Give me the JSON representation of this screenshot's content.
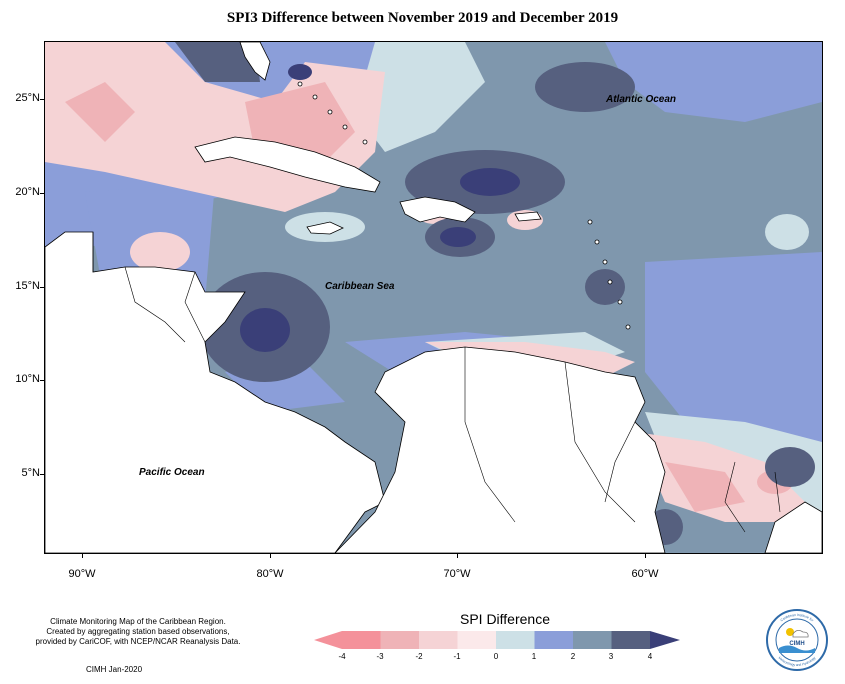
{
  "title": "SPI3 Difference between November 2019 and December 2019",
  "map": {
    "latitude_ticks": [
      "25°N",
      "20°N",
      "15°N",
      "10°N",
      "5°N"
    ],
    "longitude_ticks": [
      "90°W",
      "80°W",
      "70°W",
      "60°W"
    ],
    "ocean_labels": {
      "atlantic": "Atlantic Ocean",
      "caribbean": "Caribbean Sea",
      "pacific": "Pacific Ocean"
    },
    "land_color": "#ffffff",
    "coastline_color": "#000000"
  },
  "notes": {
    "line1": "Climate Monitoring Map of the Caribbean Region.",
    "line2": "Created by aggregating station based observations,",
    "line3": "provided by CariCOF, with NCEP/NCAR Reanalysis Data.",
    "stamp": "CIMH Jan-2020"
  },
  "legend": {
    "title": "SPI Difference",
    "labels": [
      "-4",
      "-3",
      "-2",
      "-1",
      "0",
      "1",
      "2",
      "3",
      "4"
    ],
    "colors": [
      "#f4919a",
      "#efb3b7",
      "#f5d3d5",
      "#fbe9ea",
      "#cde0e6",
      "#8b9ed9",
      "#7f97ad",
      "#56607f",
      "#3a3f78"
    ]
  },
  "logo": {
    "text": "CIMH",
    "ring_text_top": "Caribbean Institute for",
    "ring_text_bottom": "Meteorology and Hydrology"
  }
}
